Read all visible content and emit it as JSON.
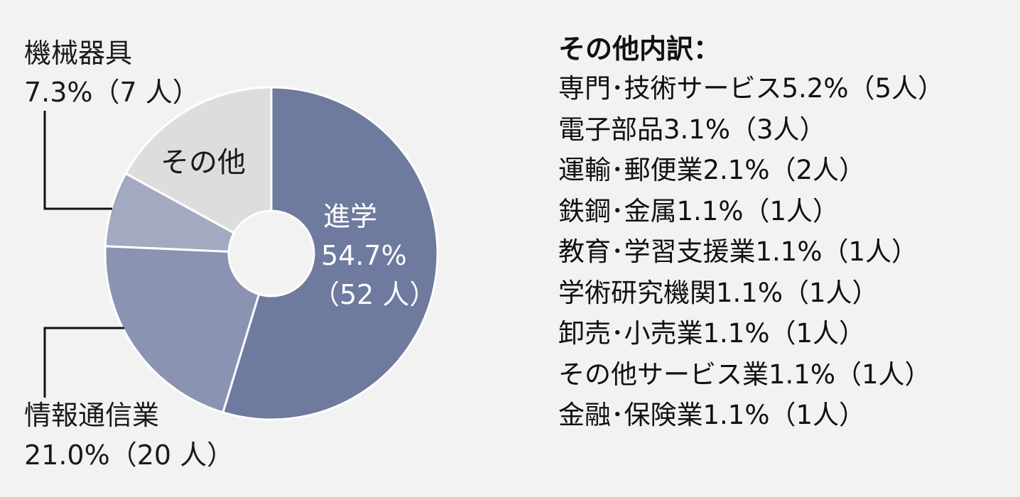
{
  "chart_data": {
    "type": "pie",
    "style": "donut",
    "slices": [
      {
        "label": "進学",
        "percent": 54.7,
        "count": 52,
        "percent_text": "54.7%",
        "count_text": "（52 人）",
        "color": "#6e7a9e"
      },
      {
        "label": "情報通信業",
        "percent": 21.0,
        "count": 20,
        "percent_text": "21.0%（20 人）",
        "color": "#8a93b2"
      },
      {
        "label": "機械器具",
        "percent": 7.3,
        "count": 7,
        "percent_text": "7.3%（7 人）",
        "color": "#a4a9c2"
      },
      {
        "label": "その他",
        "percent": 17.0,
        "color": "#dddddd"
      }
    ],
    "start_angle_deg": 0,
    "direction": "clockwise"
  },
  "breakdown": {
    "title": "その他内訳：",
    "items": [
      "専門･技術サービス5.2%（5人）",
      "電子部品3.1%（3人）",
      "運輸･郵便業2.1%（2人）",
      "鉄鋼･金属1.1%（1人）",
      "教育･学習支援業1.1%（1人）",
      "学術研究機関1.1%（1人）",
      "卸売･小売業1.1%（1人）",
      "その他サービス業1.1%（1人）",
      "金融･保険業1.1%（1人）"
    ]
  },
  "colors": {
    "background": "#f2f2f2",
    "slice_border": "#ffffff",
    "text": "#111111"
  }
}
